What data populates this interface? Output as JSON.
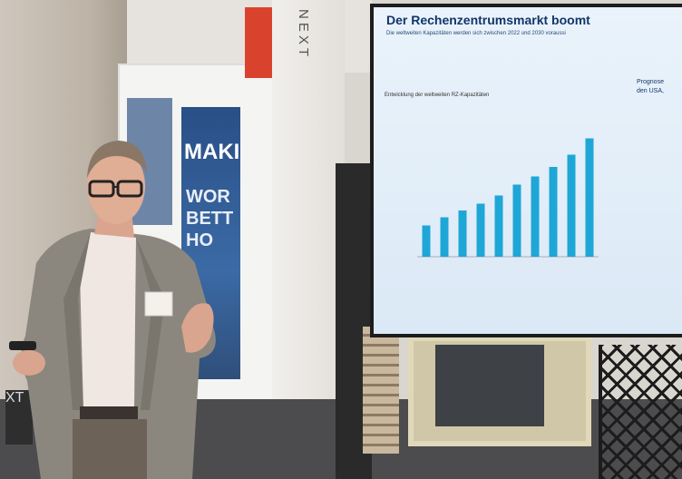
{
  "slide": {
    "title": "Der Rechenzentrumsmarkt boomt",
    "subtitle": "Die weltweiten Kapazitäten werden sich zwischen 2022 und 2030 voraussi",
    "chart_title": "Entwicklung der weltweiten RZ-Kapazitäten",
    "right_title": "Prognose\nden USA,"
  },
  "booth": {
    "pillar_logo": "NEXT",
    "door_sign_1": "MAKI",
    "door_sign_2": "WOR\nBETT\nHO",
    "left_sign": "XT"
  },
  "chart_data": {
    "type": "bar",
    "categories": [
      "",
      "",
      "",
      "",
      "",
      "",
      "",
      "",
      "",
      ""
    ],
    "values": [
      46,
      58,
      68,
      78,
      90,
      106,
      118,
      132,
      150,
      174
    ],
    "title": "Entwicklung der weltweiten RZ-Kapazitäten",
    "xlabel": "",
    "ylabel": "",
    "bar_color": "#1ea7d6",
    "ylim": [
      0,
      200
    ]
  },
  "colors": {
    "slide_title": "#12356a",
    "accent_red": "#d9432e",
    "bar": "#1ea7d6"
  }
}
